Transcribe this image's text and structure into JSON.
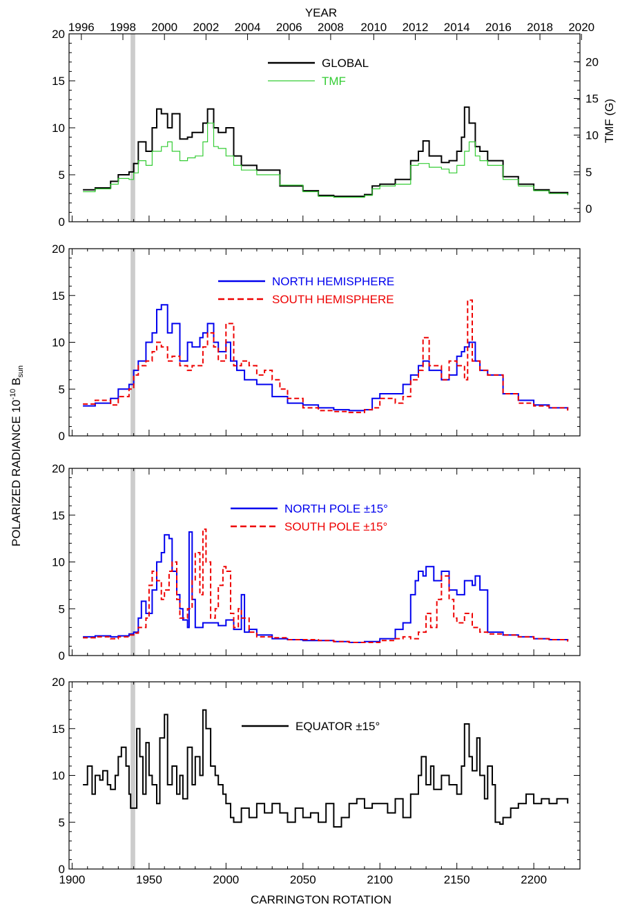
{
  "figure": {
    "top_axis_title": "YEAR",
    "x_axis_title": "CARRINGTON ROTATION",
    "y_axis_title_main": "POLARIZED RADIANCE 10",
    "y_axis_title_exp": "-10",
    "y_axis_title_unit": "B",
    "y_axis_title_sub": "sun",
    "right_axis_title": "TMF (G)",
    "data_gap_shading": {
      "from": 1938,
      "to": 1941,
      "color": "#cccccc"
    }
  },
  "chart_data": [
    {
      "type": "line",
      "panel": "global",
      "xlabel": "CARRINGTON ROTATION",
      "ylabel": "POLARIZED RADIANCE 10^-10 B_sun",
      "xlim": [
        1898,
        2230
      ],
      "ylim": [
        0,
        20
      ],
      "yticks": [
        0,
        5,
        10,
        15,
        20
      ],
      "top_axis": {
        "label": "YEAR",
        "ticks": [
          "1996",
          "1998",
          "2000",
          "2002",
          "2004",
          "2006",
          "2008",
          "2010",
          "2012",
          "2014",
          "2016",
          "2018",
          "2020"
        ],
        "tick_rotations": [
          1906,
          1933,
          1960,
          1987,
          2014,
          2041,
          2068,
          2096,
          2123,
          2150,
          2177,
          2204,
          2231
        ]
      },
      "right_axis": {
        "label": "TMF (G)",
        "ticks": [
          "0",
          "5",
          "10",
          "15",
          "20"
        ],
        "ylim": [
          -1.8,
          23.8
        ]
      },
      "legend_position": "top-center",
      "series": [
        {
          "name": "GLOBAL",
          "color": "#000000",
          "x": [
            1907,
            1915,
            1925,
            1930,
            1937,
            1940,
            1943,
            1948,
            1952,
            1955,
            1958,
            1962,
            1965,
            1970,
            1975,
            1978,
            1985,
            1988,
            1992,
            1995,
            2000,
            2005,
            2010,
            2020,
            2035,
            2050,
            2060,
            2070,
            2080,
            2090,
            2095,
            2100,
            2110,
            2120,
            2125,
            2128,
            2132,
            2140,
            2145,
            2150,
            2153,
            2155,
            2158,
            2162,
            2165,
            2170,
            2180,
            2190,
            2200,
            2210,
            2222
          ],
          "y": [
            3.4,
            3.6,
            4.3,
            5.0,
            5.3,
            6.2,
            8.5,
            7.5,
            10.0,
            12.0,
            11.5,
            10.0,
            11.5,
            8.8,
            9.0,
            9.5,
            10.5,
            12.0,
            10.0,
            9.5,
            10.0,
            7.0,
            6.0,
            5.5,
            3.8,
            3.3,
            2.8,
            2.7,
            2.7,
            2.9,
            3.8,
            4.0,
            4.5,
            6.5,
            7.5,
            8.6,
            7.0,
            6.3,
            6.5,
            7.5,
            9.0,
            12.2,
            10.5,
            8.0,
            7.5,
            6.5,
            4.8,
            4.0,
            3.4,
            3.1,
            2.9
          ]
        },
        {
          "name": "TMF",
          "color": "#33cc33",
          "x": [
            1907,
            1915,
            1925,
            1930,
            1937,
            1940,
            1943,
            1948,
            1952,
            1958,
            1962,
            1965,
            1970,
            1975,
            1980,
            1985,
            1988,
            1992,
            1995,
            2000,
            2005,
            2010,
            2020,
            2035,
            2050,
            2060,
            2070,
            2080,
            2090,
            2095,
            2100,
            2110,
            2120,
            2125,
            2132,
            2140,
            2145,
            2150,
            2155,
            2158,
            2162,
            2165,
            2170,
            2180,
            2190,
            2200,
            2210,
            2222
          ],
          "y": [
            3.2,
            3.5,
            4.0,
            4.6,
            4.5,
            5.2,
            6.5,
            6.0,
            7.5,
            8.0,
            8.5,
            7.5,
            6.5,
            6.8,
            7.0,
            8.5,
            10.5,
            8.0,
            7.8,
            7.0,
            6.0,
            5.5,
            5.0,
            3.9,
            3.2,
            2.7,
            2.6,
            2.6,
            2.8,
            3.5,
            3.8,
            4.0,
            6.0,
            6.2,
            5.8,
            5.6,
            5.2,
            6.0,
            7.5,
            8.5,
            7.0,
            6.5,
            6.0,
            4.5,
            3.8,
            3.3,
            3.0,
            2.8
          ]
        }
      ]
    },
    {
      "type": "line",
      "panel": "hemispheres",
      "xlim": [
        1898,
        2230
      ],
      "ylim": [
        0,
        20
      ],
      "yticks": [
        0,
        5,
        10,
        15,
        20
      ],
      "legend_position": "top-center",
      "series": [
        {
          "name": "NORTH HEMISPHERE",
          "color": "#0000ee",
          "style": "solid",
          "x": [
            1907,
            1915,
            1925,
            1930,
            1937,
            1940,
            1943,
            1948,
            1952,
            1955,
            1958,
            1962,
            1965,
            1970,
            1975,
            1978,
            1983,
            1985,
            1988,
            1992,
            1995,
            2000,
            2003,
            2007,
            2012,
            2020,
            2030,
            2040,
            2050,
            2060,
            2070,
            2080,
            2090,
            2095,
            2100,
            2110,
            2115,
            2120,
            2125,
            2128,
            2132,
            2140,
            2145,
            2150,
            2153,
            2155,
            2158,
            2162,
            2165,
            2170,
            2180,
            2190,
            2200,
            2210,
            2222
          ],
          "y": [
            3.2,
            3.5,
            4.0,
            5.0,
            5.5,
            7.0,
            8.0,
            10.0,
            11.0,
            13.5,
            14.0,
            11.0,
            12.0,
            8.0,
            10.0,
            9.5,
            10.5,
            11.0,
            12.0,
            10.0,
            9.0,
            10.0,
            8.0,
            7.0,
            6.0,
            5.5,
            4.2,
            3.5,
            3.3,
            3.0,
            2.8,
            2.7,
            2.8,
            4.0,
            4.5,
            4.5,
            5.5,
            6.5,
            7.5,
            8.0,
            7.0,
            6.0,
            6.5,
            8.5,
            9.0,
            9.5,
            10.0,
            8.0,
            7.0,
            6.5,
            4.5,
            3.8,
            3.3,
            3.0,
            2.8
          ]
        },
        {
          "name": "SOUTH HEMISPHERE",
          "color": "#ee0000",
          "style": "dashed",
          "x": [
            1907,
            1915,
            1925,
            1930,
            1937,
            1940,
            1943,
            1948,
            1952,
            1955,
            1958,
            1962,
            1965,
            1970,
            1975,
            1978,
            1985,
            1988,
            1992,
            1995,
            2000,
            2005,
            2010,
            2015,
            2020,
            2025,
            2030,
            2035,
            2040,
            2050,
            2060,
            2070,
            2080,
            2090,
            2095,
            2100,
            2110,
            2115,
            2120,
            2125,
            2128,
            2132,
            2140,
            2145,
            2150,
            2155,
            2157,
            2160,
            2165,
            2170,
            2180,
            2190,
            2200,
            2210,
            2222
          ],
          "y": [
            3.4,
            3.8,
            3.3,
            4.2,
            5.0,
            6.5,
            7.5,
            8.0,
            9.0,
            10.0,
            9.5,
            8.0,
            8.5,
            7.5,
            7.0,
            7.5,
            9.5,
            11.0,
            9.5,
            8.0,
            12.0,
            7.5,
            8.0,
            7.5,
            6.5,
            7.0,
            6.0,
            5.0,
            4.0,
            3.0,
            2.7,
            2.6,
            2.5,
            2.8,
            3.0,
            4.0,
            3.5,
            4.2,
            6.0,
            7.0,
            10.5,
            7.5,
            6.0,
            8.0,
            7.5,
            6.0,
            14.5,
            8.0,
            7.0,
            6.5,
            4.5,
            3.5,
            3.2,
            3.0,
            2.7
          ]
        }
      ]
    },
    {
      "type": "line",
      "panel": "poles",
      "xlim": [
        1898,
        2230
      ],
      "ylim": [
        0,
        20
      ],
      "yticks": [
        0,
        5,
        10,
        15,
        20
      ],
      "legend_position": "top-center",
      "series": [
        {
          "name": "NORTH POLE ±15°",
          "color": "#0000ee",
          "style": "solid",
          "x": [
            1907,
            1915,
            1925,
            1930,
            1937,
            1940,
            1943,
            1945,
            1948,
            1952,
            1955,
            1958,
            1960,
            1963,
            1965,
            1968,
            1970,
            1972,
            1975,
            1976,
            1978,
            1980,
            1985,
            1990,
            1995,
            2000,
            2005,
            2010,
            2012,
            2015,
            2020,
            2030,
            2040,
            2050,
            2060,
            2070,
            2080,
            2090,
            2100,
            2110,
            2115,
            2120,
            2123,
            2125,
            2128,
            2130,
            2135,
            2140,
            2145,
            2150,
            2155,
            2160,
            2162,
            2165,
            2170,
            2180,
            2190,
            2200,
            2210,
            2222
          ],
          "y": [
            2.0,
            2.1,
            2.0,
            2.1,
            2.3,
            2.5,
            4.0,
            5.8,
            4.5,
            7.0,
            10.0,
            11.0,
            12.9,
            12.5,
            9.0,
            6.5,
            5.0,
            3.8,
            3.0,
            13.2,
            6.0,
            3.0,
            3.5,
            3.5,
            3.2,
            3.8,
            2.8,
            6.5,
            2.5,
            2.8,
            2.2,
            1.8,
            1.7,
            1.6,
            1.6,
            1.5,
            1.4,
            1.5,
            1.8,
            2.8,
            3.5,
            6.5,
            8.0,
            9.0,
            8.5,
            9.5,
            8.0,
            9.0,
            7.0,
            6.5,
            8.0,
            7.5,
            8.5,
            7.0,
            2.5,
            2.2,
            2.0,
            1.8,
            1.7,
            1.6
          ]
        },
        {
          "name": "SOUTH POLE ±15°",
          "color": "#ee0000",
          "style": "dashed",
          "x": [
            1907,
            1915,
            1925,
            1930,
            1937,
            1940,
            1943,
            1948,
            1950,
            1952,
            1955,
            1958,
            1960,
            1963,
            1965,
            1968,
            1970,
            1975,
            1978,
            1980,
            1983,
            1985,
            1987,
            1990,
            1993,
            1995,
            1998,
            2000,
            2003,
            2005,
            2008,
            2010,
            2015,
            2020,
            2030,
            2040,
            2050,
            2060,
            2070,
            2080,
            2090,
            2100,
            2110,
            2115,
            2120,
            2125,
            2130,
            2133,
            2137,
            2140,
            2145,
            2148,
            2150,
            2155,
            2160,
            2165,
            2170,
            2180,
            2190,
            2200,
            2210,
            2222
          ],
          "y": [
            1.9,
            2.0,
            1.8,
            2.0,
            2.2,
            2.4,
            3.0,
            4.0,
            7.5,
            9.0,
            8.0,
            6.0,
            7.0,
            9.0,
            10.0,
            6.0,
            4.0,
            5.0,
            8.0,
            11.0,
            6.5,
            13.5,
            10.0,
            4.0,
            5.0,
            7.5,
            9.5,
            9.0,
            4.5,
            3.0,
            5.0,
            4.0,
            2.5,
            2.0,
            1.9,
            1.7,
            1.7,
            1.6,
            1.5,
            1.4,
            1.4,
            1.6,
            1.8,
            2.0,
            1.8,
            2.5,
            4.5,
            3.0,
            6.0,
            8.5,
            6.0,
            4.0,
            3.5,
            4.5,
            3.0,
            2.5,
            2.3,
            2.2,
            2.0,
            1.8,
            1.7,
            1.5
          ]
        }
      ]
    },
    {
      "type": "line",
      "panel": "equator",
      "xlim": [
        1898,
        2230
      ],
      "ylim": [
        0,
        20
      ],
      "yticks": [
        0,
        5,
        10,
        15,
        20
      ],
      "xticks": [
        1900,
        1950,
        2000,
        2050,
        2100,
        2150,
        2200
      ],
      "legend_position": "top-center",
      "series": [
        {
          "name": "EQUATOR ±15°",
          "color": "#000000",
          "x": [
            1907,
            1910,
            1913,
            1915,
            1918,
            1920,
            1923,
            1925,
            1928,
            1930,
            1932,
            1935,
            1937,
            1938,
            1942,
            1944,
            1946,
            1948,
            1950,
            1952,
            1955,
            1957,
            1960,
            1962,
            1965,
            1968,
            1970,
            1972,
            1975,
            1978,
            1980,
            1983,
            1985,
            1987,
            1990,
            1993,
            1995,
            1998,
            2000,
            2003,
            2005,
            2010,
            2015,
            2020,
            2025,
            2030,
            2035,
            2040,
            2045,
            2050,
            2055,
            2060,
            2065,
            2070,
            2075,
            2080,
            2085,
            2090,
            2095,
            2100,
            2105,
            2110,
            2115,
            2120,
            2125,
            2127,
            2130,
            2133,
            2135,
            2140,
            2145,
            2150,
            2153,
            2155,
            2158,
            2160,
            2163,
            2165,
            2168,
            2170,
            2173,
            2175,
            2178,
            2180,
            2185,
            2190,
            2195,
            2200,
            2205,
            2210,
            2215,
            2222
          ],
          "y": [
            9.0,
            11.0,
            8.0,
            10.0,
            9.5,
            10.5,
            9.0,
            8.5,
            10.0,
            12.0,
            13.0,
            11.0,
            8.0,
            6.5,
            15.0,
            12.0,
            8.0,
            13.5,
            10.0,
            9.0,
            7.0,
            14.0,
            16.5,
            9.0,
            11.0,
            8.0,
            10.0,
            7.5,
            13.0,
            9.0,
            12.0,
            10.0,
            17.0,
            15.0,
            11.0,
            10.0,
            9.0,
            8.0,
            7.0,
            5.5,
            5.0,
            6.5,
            5.5,
            7.0,
            6.0,
            7.0,
            6.0,
            5.0,
            6.5,
            5.5,
            6.0,
            5.0,
            7.0,
            4.5,
            5.5,
            7.0,
            7.5,
            6.5,
            7.0,
            7.0,
            6.0,
            7.5,
            5.5,
            8.0,
            10.0,
            12.0,
            9.0,
            11.0,
            8.5,
            10.0,
            9.0,
            8.0,
            11.0,
            15.5,
            12.0,
            10.5,
            14.0,
            10.0,
            7.5,
            11.0,
            9.0,
            5.0,
            4.8,
            5.5,
            6.5,
            7.0,
            8.0,
            7.0,
            7.5,
            7.0,
            7.5,
            7.0
          ]
        }
      ]
    }
  ]
}
